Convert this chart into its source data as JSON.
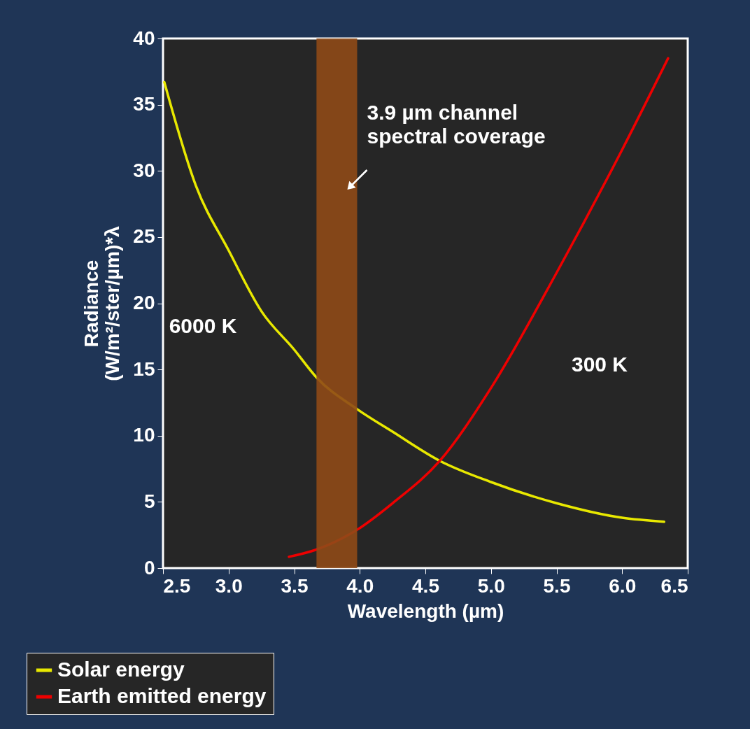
{
  "chart_data": {
    "type": "line",
    "xlabel": "Wavelength (µm)",
    "ylabel": "Radiance\n(W/m²/ster/µm)*λ",
    "xlim": [
      2.5,
      6.5
    ],
    "xticks": [
      {
        "value": 2.5,
        "label": "2.5"
      },
      {
        "value": 3,
        "label": "3.0"
      },
      {
        "value": 3.5,
        "label": "3.5"
      },
      {
        "value": 4,
        "label": "4.0"
      },
      {
        "value": 4.5,
        "label": "4.5"
      },
      {
        "value": 5,
        "label": "5.0"
      },
      {
        "value": 5.5,
        "label": "5.5"
      },
      {
        "value": 6,
        "label": "6.0"
      },
      {
        "value": 6.5,
        "label": "6.5"
      }
    ],
    "ylim": [
      0,
      40
    ],
    "yticks": [
      0,
      5,
      10,
      15,
      20,
      25,
      30,
      35,
      40
    ],
    "series": [
      {
        "name": "Solar energy",
        "color": "#e8e800",
        "x": [
          2.51,
          2.75,
          3.0,
          3.25,
          3.5,
          3.67,
          3.98,
          4.25,
          4.61,
          5.0,
          5.5,
          6.0,
          6.32
        ],
        "values": [
          36.7,
          28.9,
          24.0,
          19.4,
          16.5,
          14.4,
          12.0,
          10.3,
          8.1,
          6.5,
          4.9,
          3.8,
          3.5
        ]
      },
      {
        "name": "Earth emitted energy",
        "color": "#ee0000",
        "x": [
          3.46,
          3.67,
          3.98,
          4.25,
          4.61,
          5.0,
          5.5,
          6.0,
          6.35
        ],
        "values": [
          0.85,
          1.4,
          2.9,
          4.9,
          8.1,
          13.6,
          22.3,
          31.6,
          38.5
        ]
      }
    ],
    "bands": [
      {
        "axis": "x",
        "from": 3.67,
        "to": 3.98,
        "label": "3.9 µm channel\nspectral coverage",
        "color": "#8f4a17"
      }
    ],
    "annotations": [
      "6000 K",
      "300 K"
    ],
    "legend": "bottom left",
    "grid": false,
    "line_style": "solid",
    "marker": "none"
  }
}
